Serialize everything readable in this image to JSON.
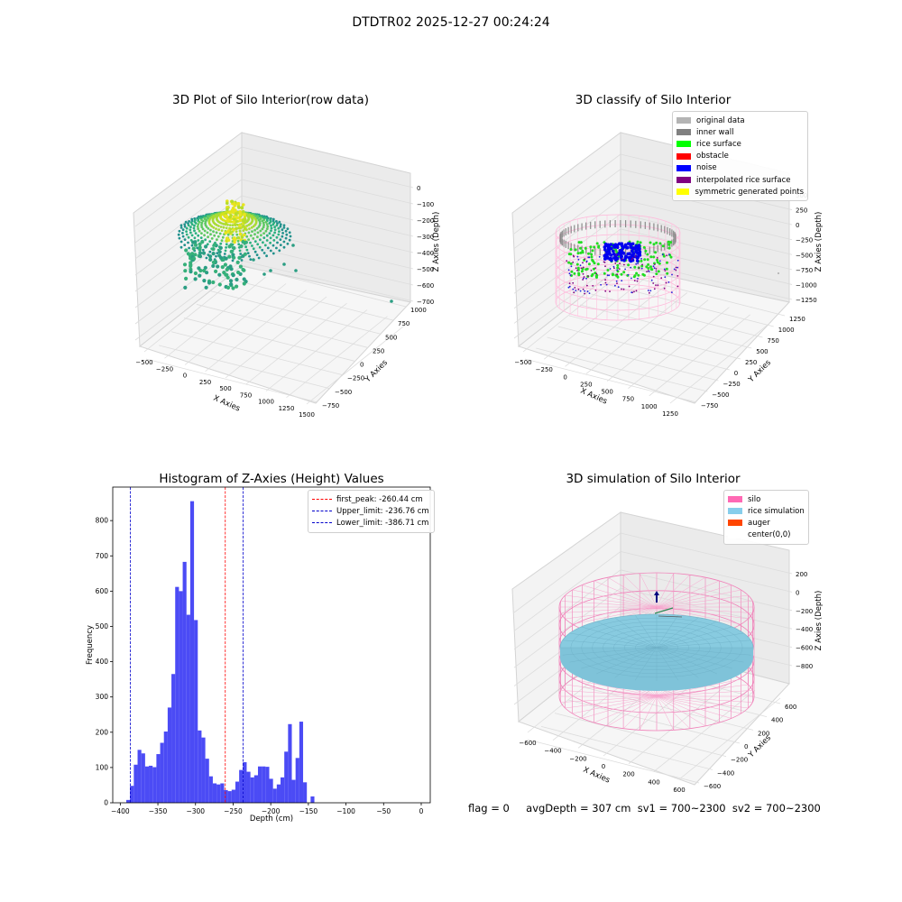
{
  "suptitle": "DTDTR02 2025-12-27 00:24:24",
  "footer": {
    "flag": "flag = 0",
    "stats": "avgDepth = 307 cm  sv1 = 700~2300  sv2 = 700~2300"
  },
  "chart_data": [
    {
      "type": "scatter",
      "title": "3D Plot of Silo Interior(row data)",
      "xlabel": "X Axies",
      "ylabel": "Y Axies",
      "zlabel": "Z Axies (Depth)",
      "x_ticks": [
        "−500",
        "−250",
        "0",
        "250",
        "500",
        "750",
        "1000",
        "1250",
        "1500"
      ],
      "y_ticks": [
        "−750",
        "−500",
        "−250",
        "0",
        "250",
        "500",
        "750",
        "1000"
      ],
      "z_ticks": [
        "0",
        "−100",
        "−200",
        "−300",
        "−400",
        "−500",
        "−600",
        "−700"
      ],
      "colormap": "viridis"
    },
    {
      "type": "scatter",
      "title": "3D classify of Silo Interior",
      "xlabel": "X Axies",
      "ylabel": "Y Axies",
      "zlabel": "Z Axies (Depth)",
      "x_ticks": [
        "−500",
        "−250",
        "0",
        "250",
        "500",
        "750",
        "1000",
        "1250"
      ],
      "y_ticks": [
        "−750",
        "−500",
        "−250",
        "0",
        "250",
        "500",
        "750",
        "1000",
        "1250"
      ],
      "z_ticks": [
        "500",
        "250",
        "0",
        "−250",
        "−500",
        "−750",
        "−1000",
        "−1250"
      ],
      "z_ticks_partial": [
        "500",
        "250"
      ],
      "legend": [
        {
          "label": "original data",
          "color": "#b4b4b4"
        },
        {
          "label": "inner wall",
          "color": "#808080"
        },
        {
          "label": "rice surface",
          "color": "#00ff00"
        },
        {
          "label": "obstacle",
          "color": "#ff0000"
        },
        {
          "label": "noise",
          "color": "#0000ff"
        },
        {
          "label": "interpolated rice surface",
          "color": "#800080"
        },
        {
          "label": "symmetric generated points",
          "color": "#ffff00"
        }
      ]
    },
    {
      "type": "bar",
      "title": "Histogram of Z-Axies (Height) Values",
      "xlabel": "Depth (cm)",
      "ylabel": "Frequency",
      "xlim": [
        -410,
        12
      ],
      "ylim": [
        0,
        895
      ],
      "x_ticks": [
        -400,
        -350,
        -300,
        -250,
        -200,
        -150,
        -100,
        -50,
        0
      ],
      "x_tick_labels": [
        "−400",
        "−350",
        "−300",
        "−250",
        "−200",
        "−150",
        "−100",
        "−50",
        "0"
      ],
      "y_ticks": [
        0,
        100,
        200,
        300,
        400,
        500,
        600,
        700,
        800
      ],
      "bin_width": 5,
      "bar_color": "#4b4bf5",
      "bins": [
        [
          -392,
          8
        ],
        [
          -387,
          48
        ],
        [
          -382,
          108
        ],
        [
          -377,
          150
        ],
        [
          -372,
          140
        ],
        [
          -367,
          103
        ],
        [
          -362,
          105
        ],
        [
          -357,
          101
        ],
        [
          -352,
          138
        ],
        [
          -347,
          170
        ],
        [
          -342,
          202
        ],
        [
          -337,
          270
        ],
        [
          -332,
          365
        ],
        [
          -327,
          612
        ],
        [
          -322,
          600
        ],
        [
          -317,
          683
        ],
        [
          -312,
          533
        ],
        [
          -307,
          855
        ],
        [
          -302,
          518
        ],
        [
          -297,
          205
        ],
        [
          -292,
          185
        ],
        [
          -287,
          125
        ],
        [
          -282,
          75
        ],
        [
          -277,
          55
        ],
        [
          -272,
          52
        ],
        [
          -267,
          55
        ],
        [
          -262,
          36
        ],
        [
          -257,
          33
        ],
        [
          -252,
          37
        ],
        [
          -247,
          60
        ],
        [
          -242,
          93
        ],
        [
          -237,
          115
        ],
        [
          -232,
          88
        ],
        [
          -227,
          72
        ],
        [
          -222,
          78
        ],
        [
          -217,
          103
        ],
        [
          -212,
          103
        ],
        [
          -207,
          102
        ],
        [
          -202,
          68
        ],
        [
          -197,
          40
        ],
        [
          -192,
          52
        ],
        [
          -187,
          72
        ],
        [
          -182,
          145
        ],
        [
          -177,
          223
        ],
        [
          -172,
          65
        ],
        [
          -167,
          127
        ],
        [
          -162,
          230
        ],
        [
          -157,
          58
        ],
        [
          -152,
          0
        ],
        [
          -147,
          18
        ]
      ],
      "vlines": [
        {
          "label": "first_peak: -260.44 cm",
          "x": -260.44,
          "color": "#ff0000"
        },
        {
          "label": "Upper_limit: -236.76 cm",
          "x": -236.76,
          "color": "#0000cc"
        },
        {
          "label": "Lower_limit: -386.71 cm",
          "x": -386.71,
          "color": "#0000cc"
        }
      ]
    },
    {
      "type": "scatter",
      "title": "3D simulation of Silo Interior",
      "xlabel": "X Axies",
      "ylabel": "Y Axies",
      "zlabel": "Z Axies (Depth)",
      "x_ticks": [
        "−600",
        "−400",
        "−200",
        "0",
        "200",
        "400",
        "600"
      ],
      "y_ticks": [
        "−600",
        "−400",
        "−200",
        "0",
        "200",
        "400",
        "600"
      ],
      "z_ticks": [
        "200",
        "0",
        "−200",
        "−400",
        "−600",
        "−800"
      ],
      "legend": [
        {
          "label": "silo",
          "color": "#ff69b4"
        },
        {
          "label": "rice simulation",
          "color": "#87ceeb"
        },
        {
          "label": "auger",
          "color": "#ff4500"
        },
        {
          "label": "center(0,0)",
          "color": "#ffffff"
        }
      ]
    }
  ]
}
